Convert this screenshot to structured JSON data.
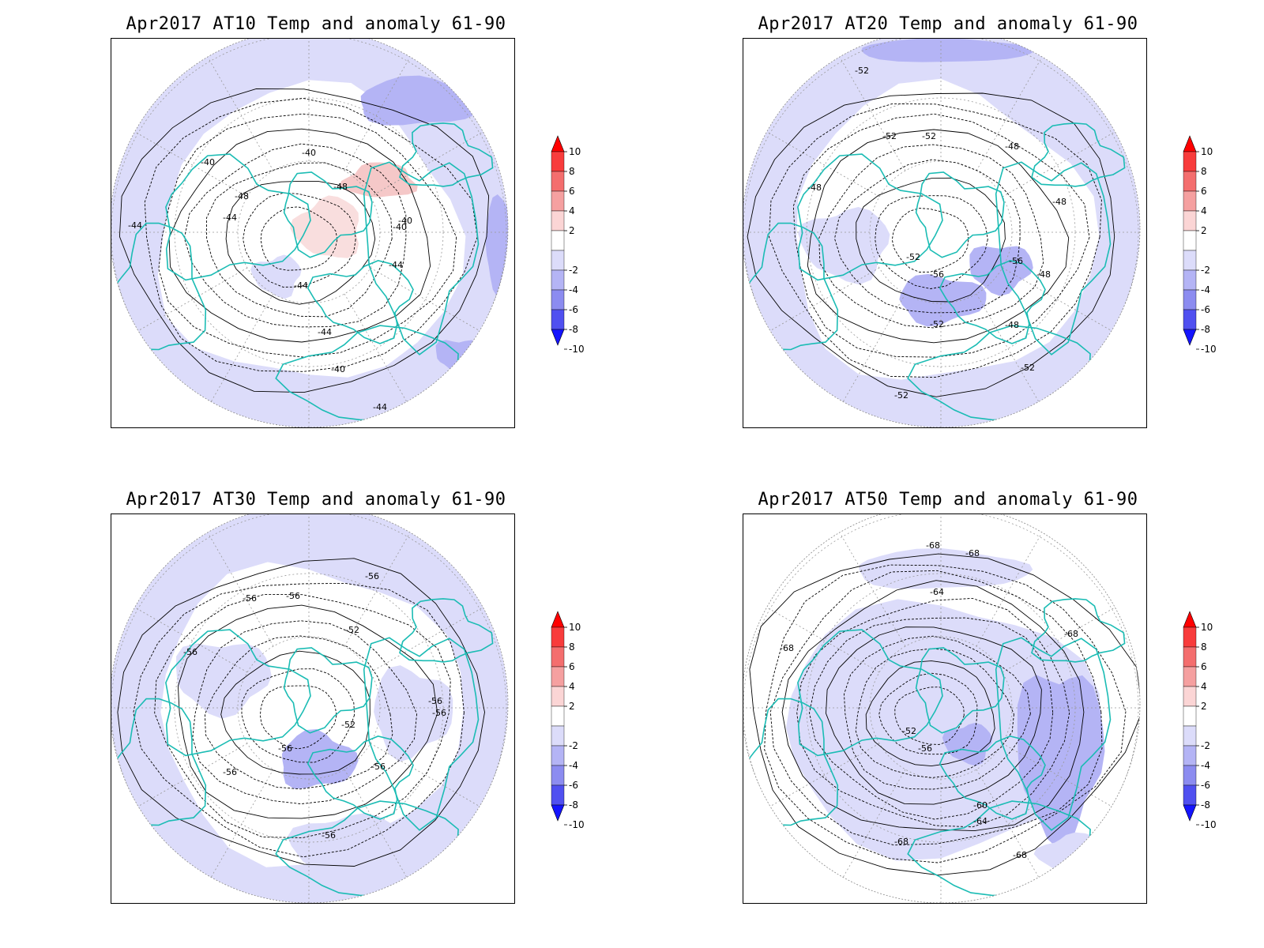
{
  "panels": [
    {
      "id": "at10",
      "title": "Apr2017 AT10 Temp and anomaly 61-90",
      "contours": [
        "-40",
        "-44",
        "-48",
        "-40",
        "-44",
        "-40",
        "-44",
        "-48",
        "-44",
        "-40",
        "-40",
        "-44",
        "-44"
      ],
      "anomaly": "mixed"
    },
    {
      "id": "at20",
      "title": "Apr2017 AT20 Temp and anomaly 61-90",
      "contours": [
        "-52",
        "-52",
        "-52",
        "-48",
        "-48",
        "-48",
        "-52",
        "-56",
        "-48",
        "-56",
        "-48",
        "-52",
        "-52",
        "-52"
      ],
      "anomaly": "cold"
    },
    {
      "id": "at30",
      "title": "Apr2017 AT30 Temp and anomaly 61-90",
      "contours": [
        "-56",
        "-56",
        "-56",
        "-56",
        "-52",
        "-56",
        "-56",
        "-52",
        "-56",
        "-56",
        "-56",
        "-56"
      ],
      "anomaly": "cold"
    },
    {
      "id": "at50",
      "title": "Apr2017 AT50 Temp and anomaly 61-90",
      "contours": [
        "-68",
        "-68",
        "-64",
        "-68",
        "-68",
        "-52",
        "-56",
        "-60",
        "-64",
        "-68",
        "-68"
      ],
      "anomaly": "cold"
    }
  ],
  "colorbar": {
    "labels": [
      "10",
      "8",
      "6",
      "4",
      "2",
      "-2",
      "-4",
      "-6",
      "-8",
      "-10"
    ],
    "colors": [
      "#ff0000",
      "#f83c3c",
      "#f46e6e",
      "#f5a0a0",
      "#fbd5d5",
      "#ffffff",
      "#dcdcfa",
      "#b4b4f5",
      "#8c8cf0",
      "#5050f0",
      "#1414ff"
    ]
  },
  "colors": {
    "coastline": "#1bbcb4",
    "contour": "#000000",
    "anom_neg_1": "#dcdcfa",
    "anom_neg_2": "#b4b4f5",
    "anom_neg_3": "#9595ee",
    "anom_pos_1": "#f9dede",
    "anom_pos_2": "#f5c8c8"
  }
}
